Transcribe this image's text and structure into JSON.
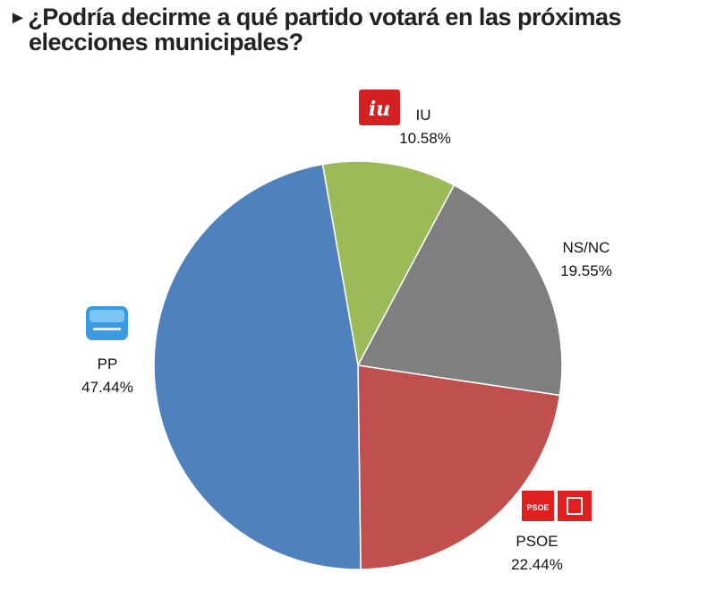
{
  "title": {
    "marker": "►",
    "line1": "¿Podría decirme a qué partido votará en las próximas",
    "line2": "elecciones municipales?"
  },
  "chart_data": {
    "type": "pie",
    "slices": [
      {
        "name": "IU",
        "value": 10.58,
        "label": "10.58%",
        "color": "#9bbb59"
      },
      {
        "name": "NS/NC",
        "value": 19.55,
        "label": "19.55%",
        "color": "#7f7f7f"
      },
      {
        "name": "PSOE",
        "value": 22.44,
        "label": "22.44%",
        "color": "#c0504d"
      },
      {
        "name": "PP",
        "value": 47.44,
        "label": "47.44%",
        "color": "#4f81bd"
      }
    ],
    "start_angle_deg": -10,
    "direction": "clockwise",
    "logos": [
      {
        "party": "IU",
        "icon": "iu-logo-icon",
        "color": "#d42020"
      },
      {
        "party": "PSOE",
        "icon": "psoe-logo-icon",
        "color": "#e02020"
      },
      {
        "party": "PP",
        "icon": "pp-logo-icon",
        "color": "#3a9be0"
      }
    ]
  }
}
